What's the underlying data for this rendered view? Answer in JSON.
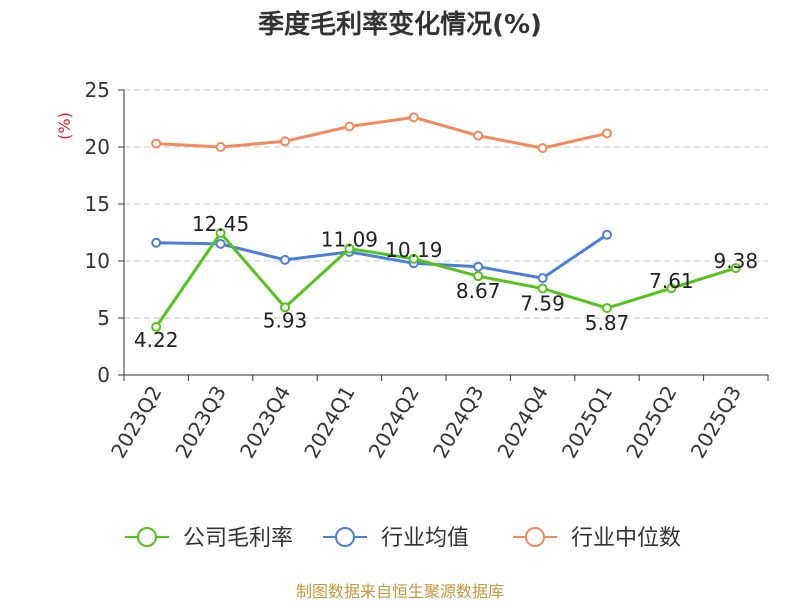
{
  "title": "季度毛利率变化情况(%)",
  "source": "制图数据来自恒生聚源数据库",
  "chart_data": {
    "type": "line",
    "title": "季度毛利率变化情况(%)",
    "ylabel": "(%)",
    "xlabel": "",
    "categories": [
      "2023Q2",
      "2023Q3",
      "2023Q4",
      "2024Q1",
      "2024Q2",
      "2024Q3",
      "2024Q4",
      "2025Q1",
      "2025Q2",
      "2025Q3"
    ],
    "ylim": [
      0,
      25
    ],
    "yticks": [
      0,
      5,
      10,
      15,
      20,
      25
    ],
    "grid": "horizontal-dashed",
    "legend_position": "bottom",
    "series": [
      {
        "name": "公司毛利率",
        "color": "#52c41a",
        "values": [
          4.22,
          12.45,
          5.93,
          11.09,
          10.19,
          8.67,
          7.59,
          5.87,
          7.61,
          9.38
        ],
        "labels": [
          "4.22",
          "12.45",
          "5.93",
          "11.09",
          "10.19",
          "8.67",
          "7.59",
          "5.87",
          "7.61",
          "9.38"
        ]
      },
      {
        "name": "行业均值",
        "color": "#4a7fdb",
        "values": [
          11.6,
          11.5,
          10.1,
          10.8,
          9.8,
          9.5,
          8.5,
          12.3,
          null,
          null
        ]
      },
      {
        "name": "行业中位数",
        "color": "#f5895a",
        "values": [
          20.3,
          20.0,
          20.5,
          21.8,
          22.6,
          21.0,
          19.9,
          21.2,
          null,
          null
        ]
      }
    ]
  }
}
